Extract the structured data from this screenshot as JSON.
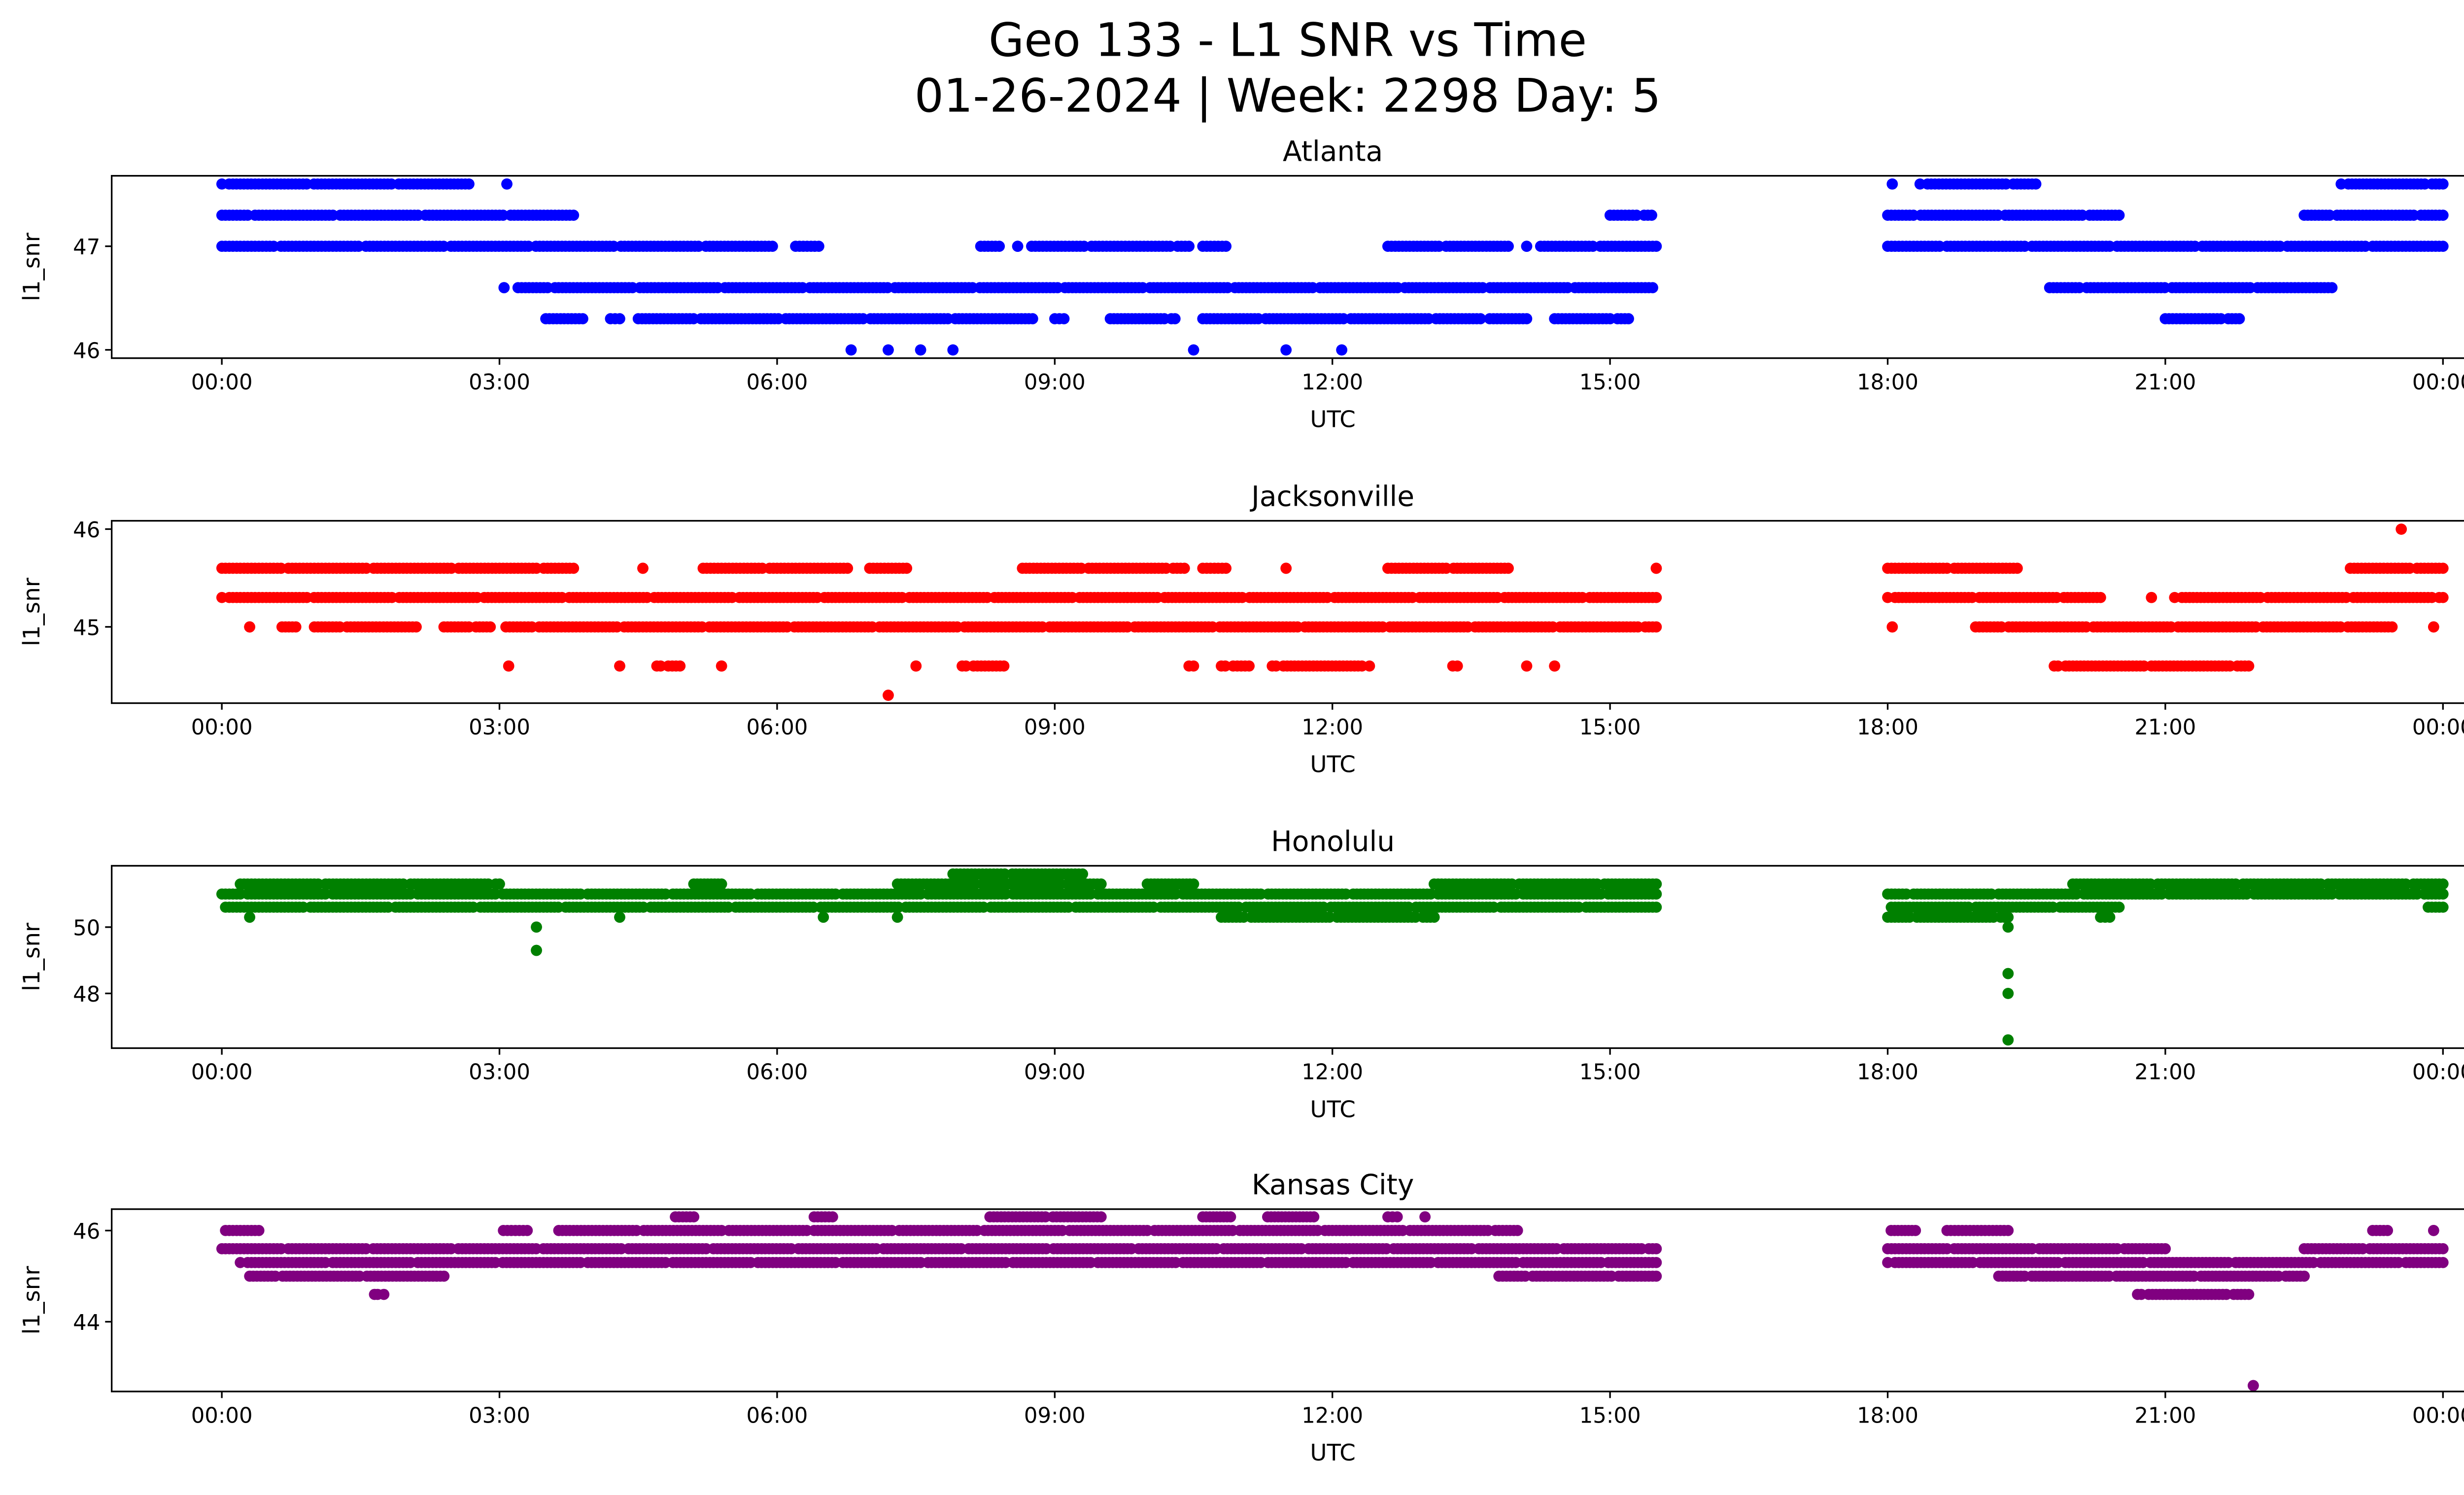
{
  "chart_data": {
    "type": "scatter",
    "title_line1": "Geo 133 - L1 SNR vs Time",
    "title_line2": "01-26-2024 | Week: 2298 Day: 5",
    "x_tick_labels": [
      "00:00",
      "03:00",
      "06:00",
      "09:00",
      "12:00",
      "15:00",
      "18:00",
      "21:00",
      "00:00"
    ],
    "x_tick_hours": [
      0,
      3,
      6,
      9,
      12,
      15,
      18,
      21,
      24
    ],
    "xlim_hours": [
      -1.19,
      25.2
    ],
    "xlabel": "UTC",
    "ylabel": "l1_snr",
    "subplots": [
      {
        "title": "Atlanta",
        "color": "#0000ff",
        "ylim": [
          45.92,
          47.68
        ],
        "y_ticks": [
          46,
          47
        ],
        "y_tick_labels": [
          "46",
          "47"
        ],
        "bands": [
          {
            "y": 47.6,
            "ranges": [
              [
                0,
                2.67
              ],
              [
                3.08,
                3.08
              ],
              [
                18.05,
                18.05
              ],
              [
                18.35,
                19.6
              ],
              [
                22.9,
                24
              ]
            ]
          },
          {
            "y": 47.3,
            "ranges": [
              [
                0,
                3.8
              ],
              [
                15,
                15.45
              ],
              [
                18,
                20.5
              ],
              [
                22.5,
                24
              ]
            ]
          },
          {
            "y": 47.0,
            "ranges": [
              [
                0,
                5.95
              ],
              [
                6.2,
                6.45
              ],
              [
                8.2,
                8.4
              ],
              [
                8.6,
                8.6
              ],
              [
                8.75,
                10.45
              ],
              [
                10.6,
                10.85
              ],
              [
                12.6,
                13.9
              ],
              [
                14.1,
                14.1
              ],
              [
                14.25,
                15.5
              ],
              [
                18,
                24
              ]
            ]
          },
          {
            "y": 46.6,
            "ranges": [
              [
                3.05,
                3.05
              ],
              [
                3.2,
                15.5
              ],
              [
                19.75,
                22.8
              ]
            ]
          },
          {
            "y": 46.3,
            "ranges": [
              [
                3.5,
                3.9
              ],
              [
                4.2,
                4.3
              ],
              [
                4.5,
                8.8
              ],
              [
                9,
                9.1
              ],
              [
                9.6,
                10.3
              ],
              [
                10.6,
                13.6
              ],
              [
                13.7,
                14.1
              ],
              [
                14.4,
                15.2
              ],
              [
                21,
                21.8
              ]
            ]
          },
          {
            "y": 46.0,
            "ranges": [
              [
                6.8,
                6.8
              ],
              [
                7.2,
                7.2
              ],
              [
                7.55,
                7.55
              ],
              [
                7.9,
                7.9
              ],
              [
                10.5,
                10.5
              ],
              [
                11.5,
                11.5
              ],
              [
                12.1,
                12.1
              ]
            ]
          }
        ]
      },
      {
        "title": "Jacksonville",
        "color": "#ff0000",
        "ylim": [
          44.22,
          46.085
        ],
        "y_ticks": [
          45,
          46
        ],
        "y_tick_labels": [
          "45",
          "46"
        ],
        "bands": [
          {
            "y": 46.0,
            "ranges": [
              [
                23.55,
                23.55
              ]
            ]
          },
          {
            "y": 45.6,
            "ranges": [
              [
                0,
                3.8
              ],
              [
                4.55,
                4.55
              ],
              [
                5.2,
                6.8
              ],
              [
                7,
                7.4
              ],
              [
                8.65,
                10.4
              ],
              [
                10.6,
                10.85
              ],
              [
                11.5,
                11.5
              ],
              [
                12.6,
                13.9
              ],
              [
                15.5,
                15.5
              ],
              [
                18,
                19.4
              ],
              [
                23,
                24
              ]
            ]
          },
          {
            "y": 45.3,
            "ranges": [
              [
                0,
                15.5
              ],
              [
                18,
                20.3
              ],
              [
                20.85,
                20.85
              ],
              [
                21.1,
                24
              ]
            ]
          },
          {
            "y": 45.0,
            "ranges": [
              [
                0.3,
                0.3
              ],
              [
                0.65,
                0.8
              ],
              [
                1,
                2.1
              ],
              [
                2.4,
                2.9
              ],
              [
                3.07,
                15.5
              ],
              [
                18.05,
                18.05
              ],
              [
                18.95,
                23.45
              ],
              [
                23.9,
                23.9
              ]
            ]
          },
          {
            "y": 44.6,
            "ranges": [
              [
                3.1,
                3.1
              ],
              [
                4.3,
                4.3
              ],
              [
                4.7,
                4.95
              ],
              [
                5.4,
                5.4
              ],
              [
                7.5,
                7.5
              ],
              [
                8,
                8.45
              ],
              [
                10.45,
                10.5
              ],
              [
                10.8,
                11.1
              ],
              [
                11.35,
                12.4
              ],
              [
                13.3,
                13.4
              ],
              [
                14.1,
                14.1
              ],
              [
                14.4,
                14.4
              ],
              [
                19.8,
                21.9
              ]
            ]
          },
          {
            "y": 44.3,
            "ranges": [
              [
                7.2,
                7.2
              ]
            ]
          }
        ]
      },
      {
        "title": "Honolulu",
        "color": "#008000",
        "ylim": [
          46.35,
          51.85
        ],
        "y_ticks": [
          48,
          50
        ],
        "y_tick_labels": [
          "48",
          "50"
        ],
        "bands": [
          {
            "y": 51.6,
            "ranges": [
              [
                7.9,
                9.3
              ]
            ]
          },
          {
            "y": 51.3,
            "ranges": [
              [
                0.2,
                3.0
              ],
              [
                5.1,
                5.4
              ],
              [
                7.3,
                9.5
              ],
              [
                10,
                10.5
              ],
              [
                13.1,
                15.5
              ],
              [
                20,
                24
              ]
            ]
          },
          {
            "y": 51.0,
            "ranges": [
              [
                0,
                15.5
              ],
              [
                18,
                24
              ]
            ]
          },
          {
            "y": 50.6,
            "ranges": [
              [
                0,
                15.5
              ],
              [
                18,
                20.5
              ],
              [
                23.8,
                24
              ]
            ]
          },
          {
            "y": 50.3,
            "ranges": [
              [
                0.3,
                0.3
              ],
              [
                4.3,
                4.3
              ],
              [
                6.5,
                6.5
              ],
              [
                7.3,
                7.3
              ],
              [
                10.8,
                13.1
              ],
              [
                18,
                19.3
              ],
              [
                20.3,
                20.4
              ]
            ]
          },
          {
            "y": 50.0,
            "ranges": [
              [
                3.4,
                3.4
              ],
              [
                19.3,
                19.3
              ]
            ]
          },
          {
            "y": 49.3,
            "ranges": [
              [
                3.4,
                3.4
              ]
            ]
          },
          {
            "y": 48.6,
            "ranges": [
              [
                19.3,
                19.3
              ]
            ]
          },
          {
            "y": 48.0,
            "ranges": [
              [
                19.3,
                19.3
              ]
            ]
          },
          {
            "y": 46.6,
            "ranges": [
              [
                19.3,
                19.3
              ]
            ]
          }
        ]
      },
      {
        "title": "Kansas City",
        "color": "#800080",
        "ylim": [
          42.47,
          46.47
        ],
        "y_ticks": [
          44,
          46
        ],
        "y_tick_labels": [
          "44",
          "46"
        ],
        "bands": [
          {
            "y": 46.3,
            "ranges": [
              [
                4.9,
                5.1
              ],
              [
                6.4,
                6.6
              ],
              [
                8.3,
                9.5
              ],
              [
                10.6,
                10.9
              ],
              [
                11.3,
                11.8
              ],
              [
                12.6,
                12.7
              ],
              [
                13,
                13
              ]
            ]
          },
          {
            "y": 46.0,
            "ranges": [
              [
                0,
                0.4
              ],
              [
                3,
                3.3
              ],
              [
                3.6,
                14
              ],
              [
                18,
                18.3
              ],
              [
                18.6,
                19.3
              ],
              [
                23.2,
                23.4
              ],
              [
                23.9,
                23.9
              ]
            ]
          },
          {
            "y": 45.6,
            "ranges": [
              [
                0,
                15.5
              ],
              [
                18,
                21
              ],
              [
                22.5,
                24
              ]
            ]
          },
          {
            "y": 45.3,
            "ranges": [
              [
                0.2,
                15.5
              ],
              [
                18,
                24
              ]
            ]
          },
          {
            "y": 45.0,
            "ranges": [
              [
                0.3,
                2.4
              ],
              [
                13.8,
                15.5
              ],
              [
                19.2,
                22.5
              ]
            ]
          },
          {
            "y": 44.6,
            "ranges": [
              [
                1.65,
                1.75
              ],
              [
                20.7,
                21.9
              ]
            ]
          },
          {
            "y": 42.6,
            "ranges": [
              [
                21.95,
                21.95
              ]
            ]
          }
        ]
      }
    ]
  }
}
